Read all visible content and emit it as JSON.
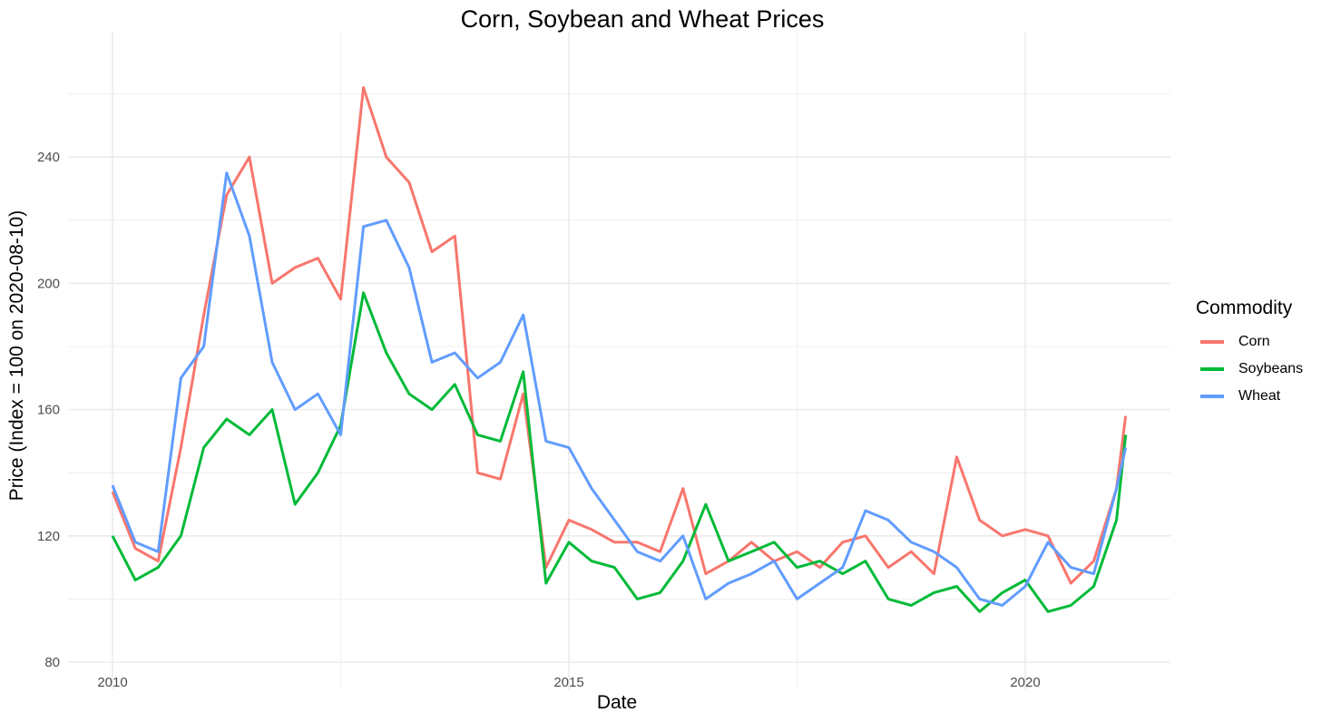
{
  "chart_data": {
    "type": "line",
    "title": "Corn, Soybean and Wheat Prices",
    "xlabel": "Date",
    "ylabel": "Price (Index = 100 on 2020-08-10)",
    "xlim": [
      2009.5,
      2021.6
    ],
    "ylim": [
      78,
      285
    ],
    "x_ticks": [
      "2010",
      "2015",
      "2020"
    ],
    "x_tick_values": [
      2010,
      2015,
      2020
    ],
    "y_ticks": [
      80,
      120,
      160,
      200,
      240
    ],
    "grid": true,
    "legend_position": "right",
    "legend_title": "Commodity",
    "x": [
      2010.0,
      2010.25,
      2010.5,
      2010.75,
      2011.0,
      2011.25,
      2011.5,
      2011.75,
      2012.0,
      2012.25,
      2012.5,
      2012.75,
      2013.0,
      2013.25,
      2013.5,
      2013.75,
      2014.0,
      2014.25,
      2014.5,
      2014.75,
      2015.0,
      2015.25,
      2015.5,
      2015.75,
      2016.0,
      2016.25,
      2016.5,
      2016.75,
      2017.0,
      2017.25,
      2017.5,
      2017.75,
      2018.0,
      2018.25,
      2018.5,
      2018.75,
      2019.0,
      2019.25,
      2019.5,
      2019.75,
      2020.0,
      2020.25,
      2020.5,
      2020.75,
      2021.0,
      2021.1
    ],
    "series": [
      {
        "name": "Corn",
        "color": "#F8766D",
        "values": [
          134,
          116,
          112,
          148,
          190,
          228,
          240,
          200,
          205,
          208,
          195,
          262,
          240,
          232,
          210,
          215,
          140,
          138,
          165,
          110,
          125,
          122,
          118,
          118,
          115,
          135,
          108,
          112,
          118,
          112,
          115,
          110,
          118,
          120,
          110,
          115,
          108,
          145,
          125,
          120,
          122,
          120,
          105,
          112,
          135,
          158
        ]
      },
      {
        "name": "Soybeans",
        "color": "#00BA38",
        "values": [
          120,
          106,
          110,
          120,
          148,
          157,
          152,
          160,
          130,
          140,
          155,
          197,
          178,
          165,
          160,
          168,
          152,
          150,
          172,
          105,
          118,
          112,
          110,
          100,
          102,
          112,
          130,
          112,
          115,
          118,
          110,
          112,
          108,
          112,
          100,
          98,
          102,
          104,
          96,
          102,
          106,
          96,
          98,
          104,
          125,
          152
        ]
      },
      {
        "name": "Wheat",
        "color": "#619CFF",
        "values": [
          136,
          118,
          115,
          170,
          180,
          235,
          215,
          175,
          160,
          165,
          152,
          218,
          220,
          205,
          175,
          178,
          170,
          175,
          190,
          150,
          148,
          135,
          125,
          115,
          112,
          120,
          100,
          105,
          108,
          112,
          100,
          105,
          110,
          128,
          125,
          118,
          115,
          110,
          100,
          98,
          104,
          118,
          110,
          108,
          135,
          148
        ]
      }
    ]
  },
  "legend": {
    "title": "Commodity",
    "items": [
      {
        "label": "Corn",
        "color": "#F8766D"
      },
      {
        "label": "Soybeans",
        "color": "#00BA38"
      },
      {
        "label": "Wheat",
        "color": "#619CFF"
      }
    ]
  }
}
